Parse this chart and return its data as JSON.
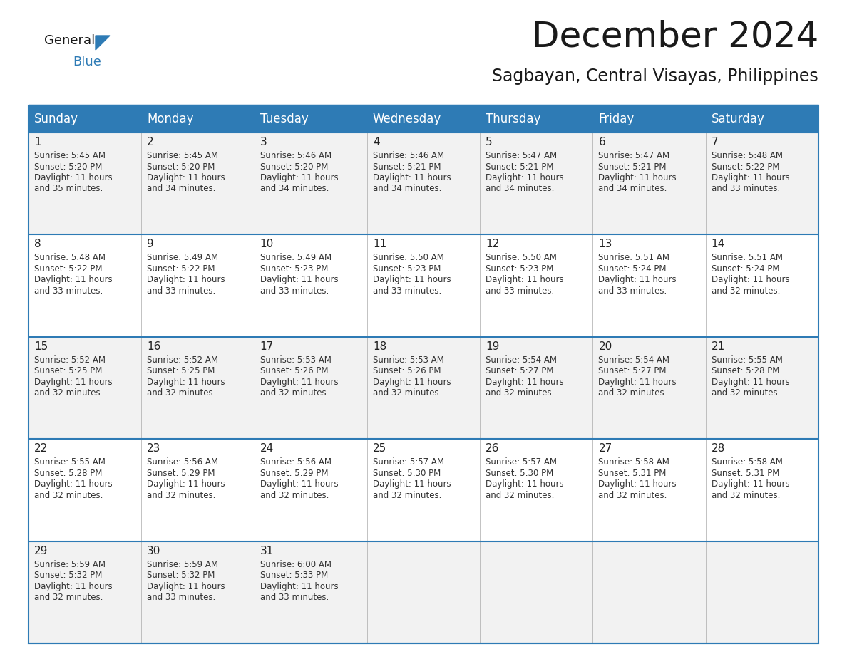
{
  "title": "December 2024",
  "subtitle": "Sagbayan, Central Visayas, Philippines",
  "header_bg_color": "#2E7BB5",
  "header_text_color": "#FFFFFF",
  "cell_bg_odd": "#F2F2F2",
  "cell_bg_even": "#FFFFFF",
  "border_color": "#2E7BB5",
  "inner_border_color": "#2E7BB5",
  "day_names": [
    "Sunday",
    "Monday",
    "Tuesday",
    "Wednesday",
    "Thursday",
    "Friday",
    "Saturday"
  ],
  "days": [
    {
      "date": 1,
      "col": 0,
      "row": 0,
      "sunrise": "5:45 AM",
      "sunset": "5:20 PM",
      "daylight_h": "11 hours",
      "daylight_m": "and 35 minutes."
    },
    {
      "date": 2,
      "col": 1,
      "row": 0,
      "sunrise": "5:45 AM",
      "sunset": "5:20 PM",
      "daylight_h": "11 hours",
      "daylight_m": "and 34 minutes."
    },
    {
      "date": 3,
      "col": 2,
      "row": 0,
      "sunrise": "5:46 AM",
      "sunset": "5:20 PM",
      "daylight_h": "11 hours",
      "daylight_m": "and 34 minutes."
    },
    {
      "date": 4,
      "col": 3,
      "row": 0,
      "sunrise": "5:46 AM",
      "sunset": "5:21 PM",
      "daylight_h": "11 hours",
      "daylight_m": "and 34 minutes."
    },
    {
      "date": 5,
      "col": 4,
      "row": 0,
      "sunrise": "5:47 AM",
      "sunset": "5:21 PM",
      "daylight_h": "11 hours",
      "daylight_m": "and 34 minutes."
    },
    {
      "date": 6,
      "col": 5,
      "row": 0,
      "sunrise": "5:47 AM",
      "sunset": "5:21 PM",
      "daylight_h": "11 hours",
      "daylight_m": "and 34 minutes."
    },
    {
      "date": 7,
      "col": 6,
      "row": 0,
      "sunrise": "5:48 AM",
      "sunset": "5:22 PM",
      "daylight_h": "11 hours",
      "daylight_m": "and 33 minutes."
    },
    {
      "date": 8,
      "col": 0,
      "row": 1,
      "sunrise": "5:48 AM",
      "sunset": "5:22 PM",
      "daylight_h": "11 hours",
      "daylight_m": "and 33 minutes."
    },
    {
      "date": 9,
      "col": 1,
      "row": 1,
      "sunrise": "5:49 AM",
      "sunset": "5:22 PM",
      "daylight_h": "11 hours",
      "daylight_m": "and 33 minutes."
    },
    {
      "date": 10,
      "col": 2,
      "row": 1,
      "sunrise": "5:49 AM",
      "sunset": "5:23 PM",
      "daylight_h": "11 hours",
      "daylight_m": "and 33 minutes."
    },
    {
      "date": 11,
      "col": 3,
      "row": 1,
      "sunrise": "5:50 AM",
      "sunset": "5:23 PM",
      "daylight_h": "11 hours",
      "daylight_m": "and 33 minutes."
    },
    {
      "date": 12,
      "col": 4,
      "row": 1,
      "sunrise": "5:50 AM",
      "sunset": "5:23 PM",
      "daylight_h": "11 hours",
      "daylight_m": "and 33 minutes."
    },
    {
      "date": 13,
      "col": 5,
      "row": 1,
      "sunrise": "5:51 AM",
      "sunset": "5:24 PM",
      "daylight_h": "11 hours",
      "daylight_m": "and 33 minutes."
    },
    {
      "date": 14,
      "col": 6,
      "row": 1,
      "sunrise": "5:51 AM",
      "sunset": "5:24 PM",
      "daylight_h": "11 hours",
      "daylight_m": "and 32 minutes."
    },
    {
      "date": 15,
      "col": 0,
      "row": 2,
      "sunrise": "5:52 AM",
      "sunset": "5:25 PM",
      "daylight_h": "11 hours",
      "daylight_m": "and 32 minutes."
    },
    {
      "date": 16,
      "col": 1,
      "row": 2,
      "sunrise": "5:52 AM",
      "sunset": "5:25 PM",
      "daylight_h": "11 hours",
      "daylight_m": "and 32 minutes."
    },
    {
      "date": 17,
      "col": 2,
      "row": 2,
      "sunrise": "5:53 AM",
      "sunset": "5:26 PM",
      "daylight_h": "11 hours",
      "daylight_m": "and 32 minutes."
    },
    {
      "date": 18,
      "col": 3,
      "row": 2,
      "sunrise": "5:53 AM",
      "sunset": "5:26 PM",
      "daylight_h": "11 hours",
      "daylight_m": "and 32 minutes."
    },
    {
      "date": 19,
      "col": 4,
      "row": 2,
      "sunrise": "5:54 AM",
      "sunset": "5:27 PM",
      "daylight_h": "11 hours",
      "daylight_m": "and 32 minutes."
    },
    {
      "date": 20,
      "col": 5,
      "row": 2,
      "sunrise": "5:54 AM",
      "sunset": "5:27 PM",
      "daylight_h": "11 hours",
      "daylight_m": "and 32 minutes."
    },
    {
      "date": 21,
      "col": 6,
      "row": 2,
      "sunrise": "5:55 AM",
      "sunset": "5:28 PM",
      "daylight_h": "11 hours",
      "daylight_m": "and 32 minutes."
    },
    {
      "date": 22,
      "col": 0,
      "row": 3,
      "sunrise": "5:55 AM",
      "sunset": "5:28 PM",
      "daylight_h": "11 hours",
      "daylight_m": "and 32 minutes."
    },
    {
      "date": 23,
      "col": 1,
      "row": 3,
      "sunrise": "5:56 AM",
      "sunset": "5:29 PM",
      "daylight_h": "11 hours",
      "daylight_m": "and 32 minutes."
    },
    {
      "date": 24,
      "col": 2,
      "row": 3,
      "sunrise": "5:56 AM",
      "sunset": "5:29 PM",
      "daylight_h": "11 hours",
      "daylight_m": "and 32 minutes."
    },
    {
      "date": 25,
      "col": 3,
      "row": 3,
      "sunrise": "5:57 AM",
      "sunset": "5:30 PM",
      "daylight_h": "11 hours",
      "daylight_m": "and 32 minutes."
    },
    {
      "date": 26,
      "col": 4,
      "row": 3,
      "sunrise": "5:57 AM",
      "sunset": "5:30 PM",
      "daylight_h": "11 hours",
      "daylight_m": "and 32 minutes."
    },
    {
      "date": 27,
      "col": 5,
      "row": 3,
      "sunrise": "5:58 AM",
      "sunset": "5:31 PM",
      "daylight_h": "11 hours",
      "daylight_m": "and 32 minutes."
    },
    {
      "date": 28,
      "col": 6,
      "row": 3,
      "sunrise": "5:58 AM",
      "sunset": "5:31 PM",
      "daylight_h": "11 hours",
      "daylight_m": "and 32 minutes."
    },
    {
      "date": 29,
      "col": 0,
      "row": 4,
      "sunrise": "5:59 AM",
      "sunset": "5:32 PM",
      "daylight_h": "11 hours",
      "daylight_m": "and 32 minutes."
    },
    {
      "date": 30,
      "col": 1,
      "row": 4,
      "sunrise": "5:59 AM",
      "sunset": "5:32 PM",
      "daylight_h": "11 hours",
      "daylight_m": "and 33 minutes."
    },
    {
      "date": 31,
      "col": 2,
      "row": 4,
      "sunrise": "6:00 AM",
      "sunset": "5:33 PM",
      "daylight_h": "11 hours",
      "daylight_m": "and 33 minutes."
    }
  ],
  "title_fontsize": 36,
  "subtitle_fontsize": 17,
  "header_fontsize": 12,
  "date_fontsize": 11,
  "cell_fontsize": 8.5,
  "logo_general_fontsize": 13,
  "logo_blue_fontsize": 13
}
